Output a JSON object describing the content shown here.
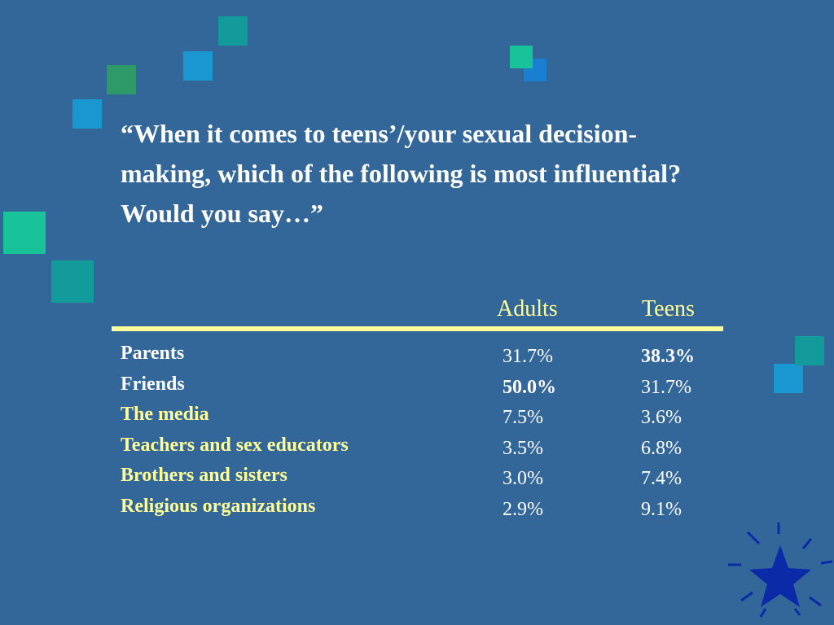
{
  "title": "“When it comes to teens’/your sexual decision-making, which of the following is most influential?  Would you say…”",
  "table": {
    "columns": [
      "Adults",
      "Teens"
    ],
    "rows": [
      {
        "label": "Parents",
        "cells": [
          "31.7%",
          "38.3%"
        ],
        "label_color": "white",
        "highlight_column": 1
      },
      {
        "label": "Friends",
        "cells": [
          "50.0%",
          "31.7%"
        ],
        "label_color": "white",
        "highlight_column": 0
      },
      {
        "label": "The media",
        "cells": [
          "7.5%",
          "3.6%"
        ],
        "label_color": "yellow"
      },
      {
        "label": "Teachers and sex educators",
        "cells": [
          "3.5%",
          "6.8%"
        ],
        "label_color": "yellow"
      },
      {
        "label": "Brothers and sisters",
        "cells": [
          "3.0%",
          "7.4%"
        ],
        "label_color": "yellow"
      },
      {
        "label": "Religious organizations",
        "cells": [
          "2.9%",
          "9.1%"
        ],
        "label_color": "yellow"
      }
    ]
  }
}
